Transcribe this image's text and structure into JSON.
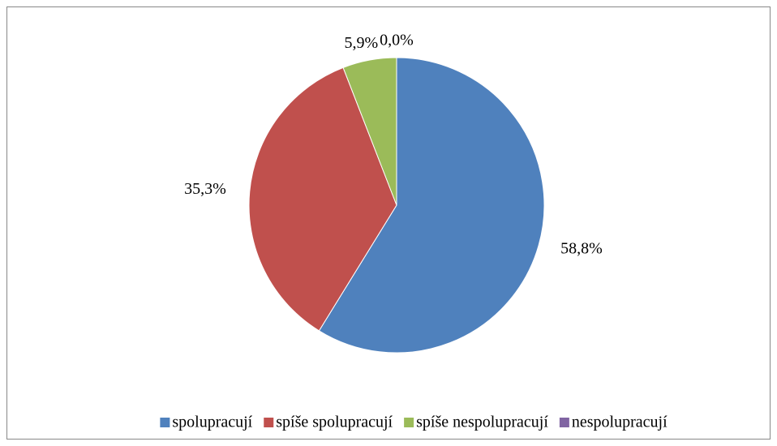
{
  "chart_data": {
    "type": "pie",
    "categories": [
      "spolupracují",
      "spíše spolupracují",
      "spíše nespolupracují",
      "nespolupracují"
    ],
    "values": [
      58.8,
      35.3,
      5.9,
      0.0
    ],
    "value_labels": [
      "58,8%",
      "35,3%",
      "5,9%",
      "0,0%"
    ],
    "colors": [
      "#4f81bd",
      "#c0504d",
      "#9bbb59",
      "#8064a2"
    ],
    "legend": "bottom"
  }
}
